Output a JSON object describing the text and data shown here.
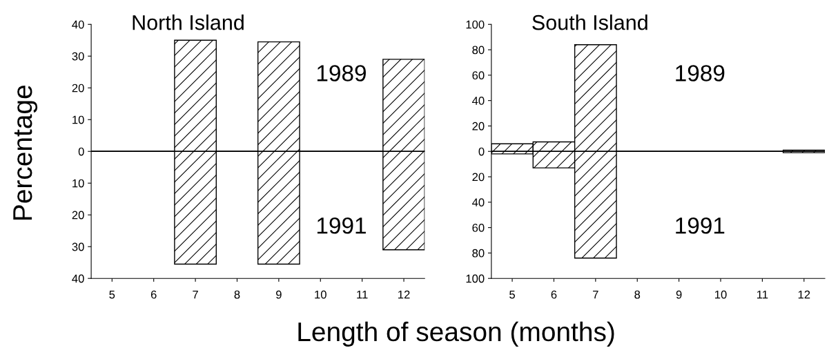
{
  "chart_data": [
    {
      "type": "bar",
      "title": "North Island",
      "xlabel": "Length of season (months)",
      "ylabel": "Percentage",
      "categories": [
        "5",
        "6",
        "7",
        "8",
        "9",
        "10",
        "11",
        "12"
      ],
      "series": [
        {
          "name": "1989",
          "color": "#000000",
          "values": [
            0,
            0,
            35,
            0,
            34.5,
            0,
            0,
            29
          ]
        },
        {
          "name": "1991",
          "color": "#000000",
          "values": [
            0,
            0,
            -35.5,
            0,
            -35.5,
            0,
            0,
            -31
          ]
        }
      ],
      "ylim": [
        -40,
        40
      ],
      "yticks": [
        {
          "value": -40,
          "label": "40"
        },
        {
          "value": -30,
          "label": "30"
        },
        {
          "value": -20,
          "label": "20"
        },
        {
          "value": -10,
          "label": "10"
        },
        0,
        10,
        20,
        30,
        40
      ],
      "ref_lines": [
        {
          "axis": "y",
          "value": 0,
          "color": "#000000"
        }
      ],
      "grid": false,
      "legend": false
    },
    {
      "type": "bar",
      "title": "South Island",
      "categories": [
        "5",
        "6",
        "7",
        "8",
        "9",
        "10",
        "11",
        "12"
      ],
      "series": [
        {
          "name": "1989",
          "color": "#000000",
          "values": [
            6,
            7.5,
            84,
            0,
            0,
            0,
            0,
            1
          ]
        },
        {
          "name": "1991",
          "color": "#000000",
          "values": [
            -2,
            -13,
            -84,
            0,
            0,
            0,
            0,
            -1
          ]
        }
      ],
      "ylim": [
        -100,
        100
      ],
      "yticks": [
        {
          "value": -100,
          "label": "100"
        },
        {
          "value": -80,
          "label": "80"
        },
        {
          "value": -60,
          "label": "60"
        },
        {
          "value": -40,
          "label": "40"
        },
        {
          "value": -20,
          "label": "20"
        },
        0,
        20,
        40,
        60,
        80,
        100
      ],
      "ref_lines": [
        {
          "axis": "y",
          "value": 0,
          "color": "#000000"
        }
      ],
      "grid": false,
      "legend": false
    }
  ]
}
